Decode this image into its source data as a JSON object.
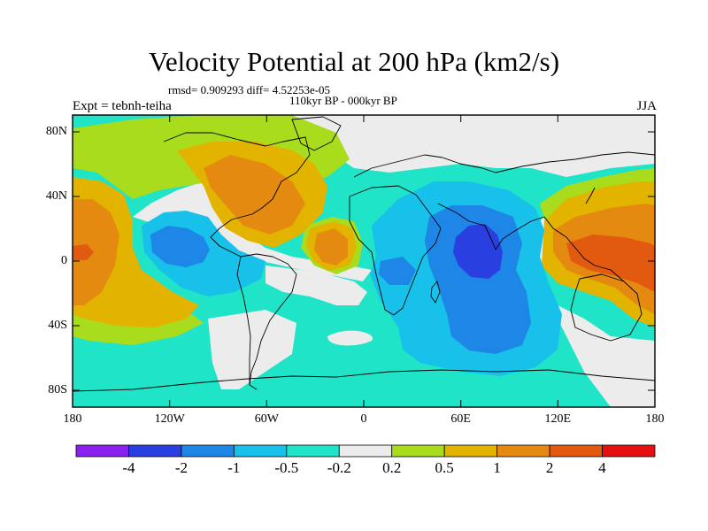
{
  "title": "Velocity Potential at 200 hPa (km2/s)",
  "stats_line": "rmsd= 0.909293 diff= 4.52253e-05",
  "period_line": "110kyr BP - 000kyr BP",
  "experiment_label": "Expt = tebnh-teiha",
  "season_label": "JJA",
  "lat_ticks": [
    "80N",
    "40N",
    "0",
    "40S",
    "80S"
  ],
  "lon_ticks": [
    "180",
    "120W",
    "60W",
    "0",
    "60E",
    "120E",
    "180"
  ],
  "colorbar": {
    "labels": [
      "-4",
      "-2",
      "-1",
      "-0.5",
      "-0.2",
      "0.2",
      "0.5",
      "1",
      "2",
      "4"
    ],
    "colors": [
      "#8a1ff0",
      "#2a3fe0",
      "#1e86e6",
      "#17c1ea",
      "#1fe4c8",
      "#ececec",
      "#a9dc1c",
      "#e2b400",
      "#e58a10",
      "#e25a10",
      "#e61010"
    ]
  },
  "palette": {
    "ocean_land": "#ececec",
    "green": "#a9dc1c",
    "yellow": "#e2b400",
    "orange": "#e58a10",
    "redorange": "#e25a10",
    "red": "#e61010",
    "teal": "#1fe4c8",
    "cyan": "#17c1ea",
    "blue": "#1e86e6",
    "darkblue": "#2a3fe0"
  }
}
